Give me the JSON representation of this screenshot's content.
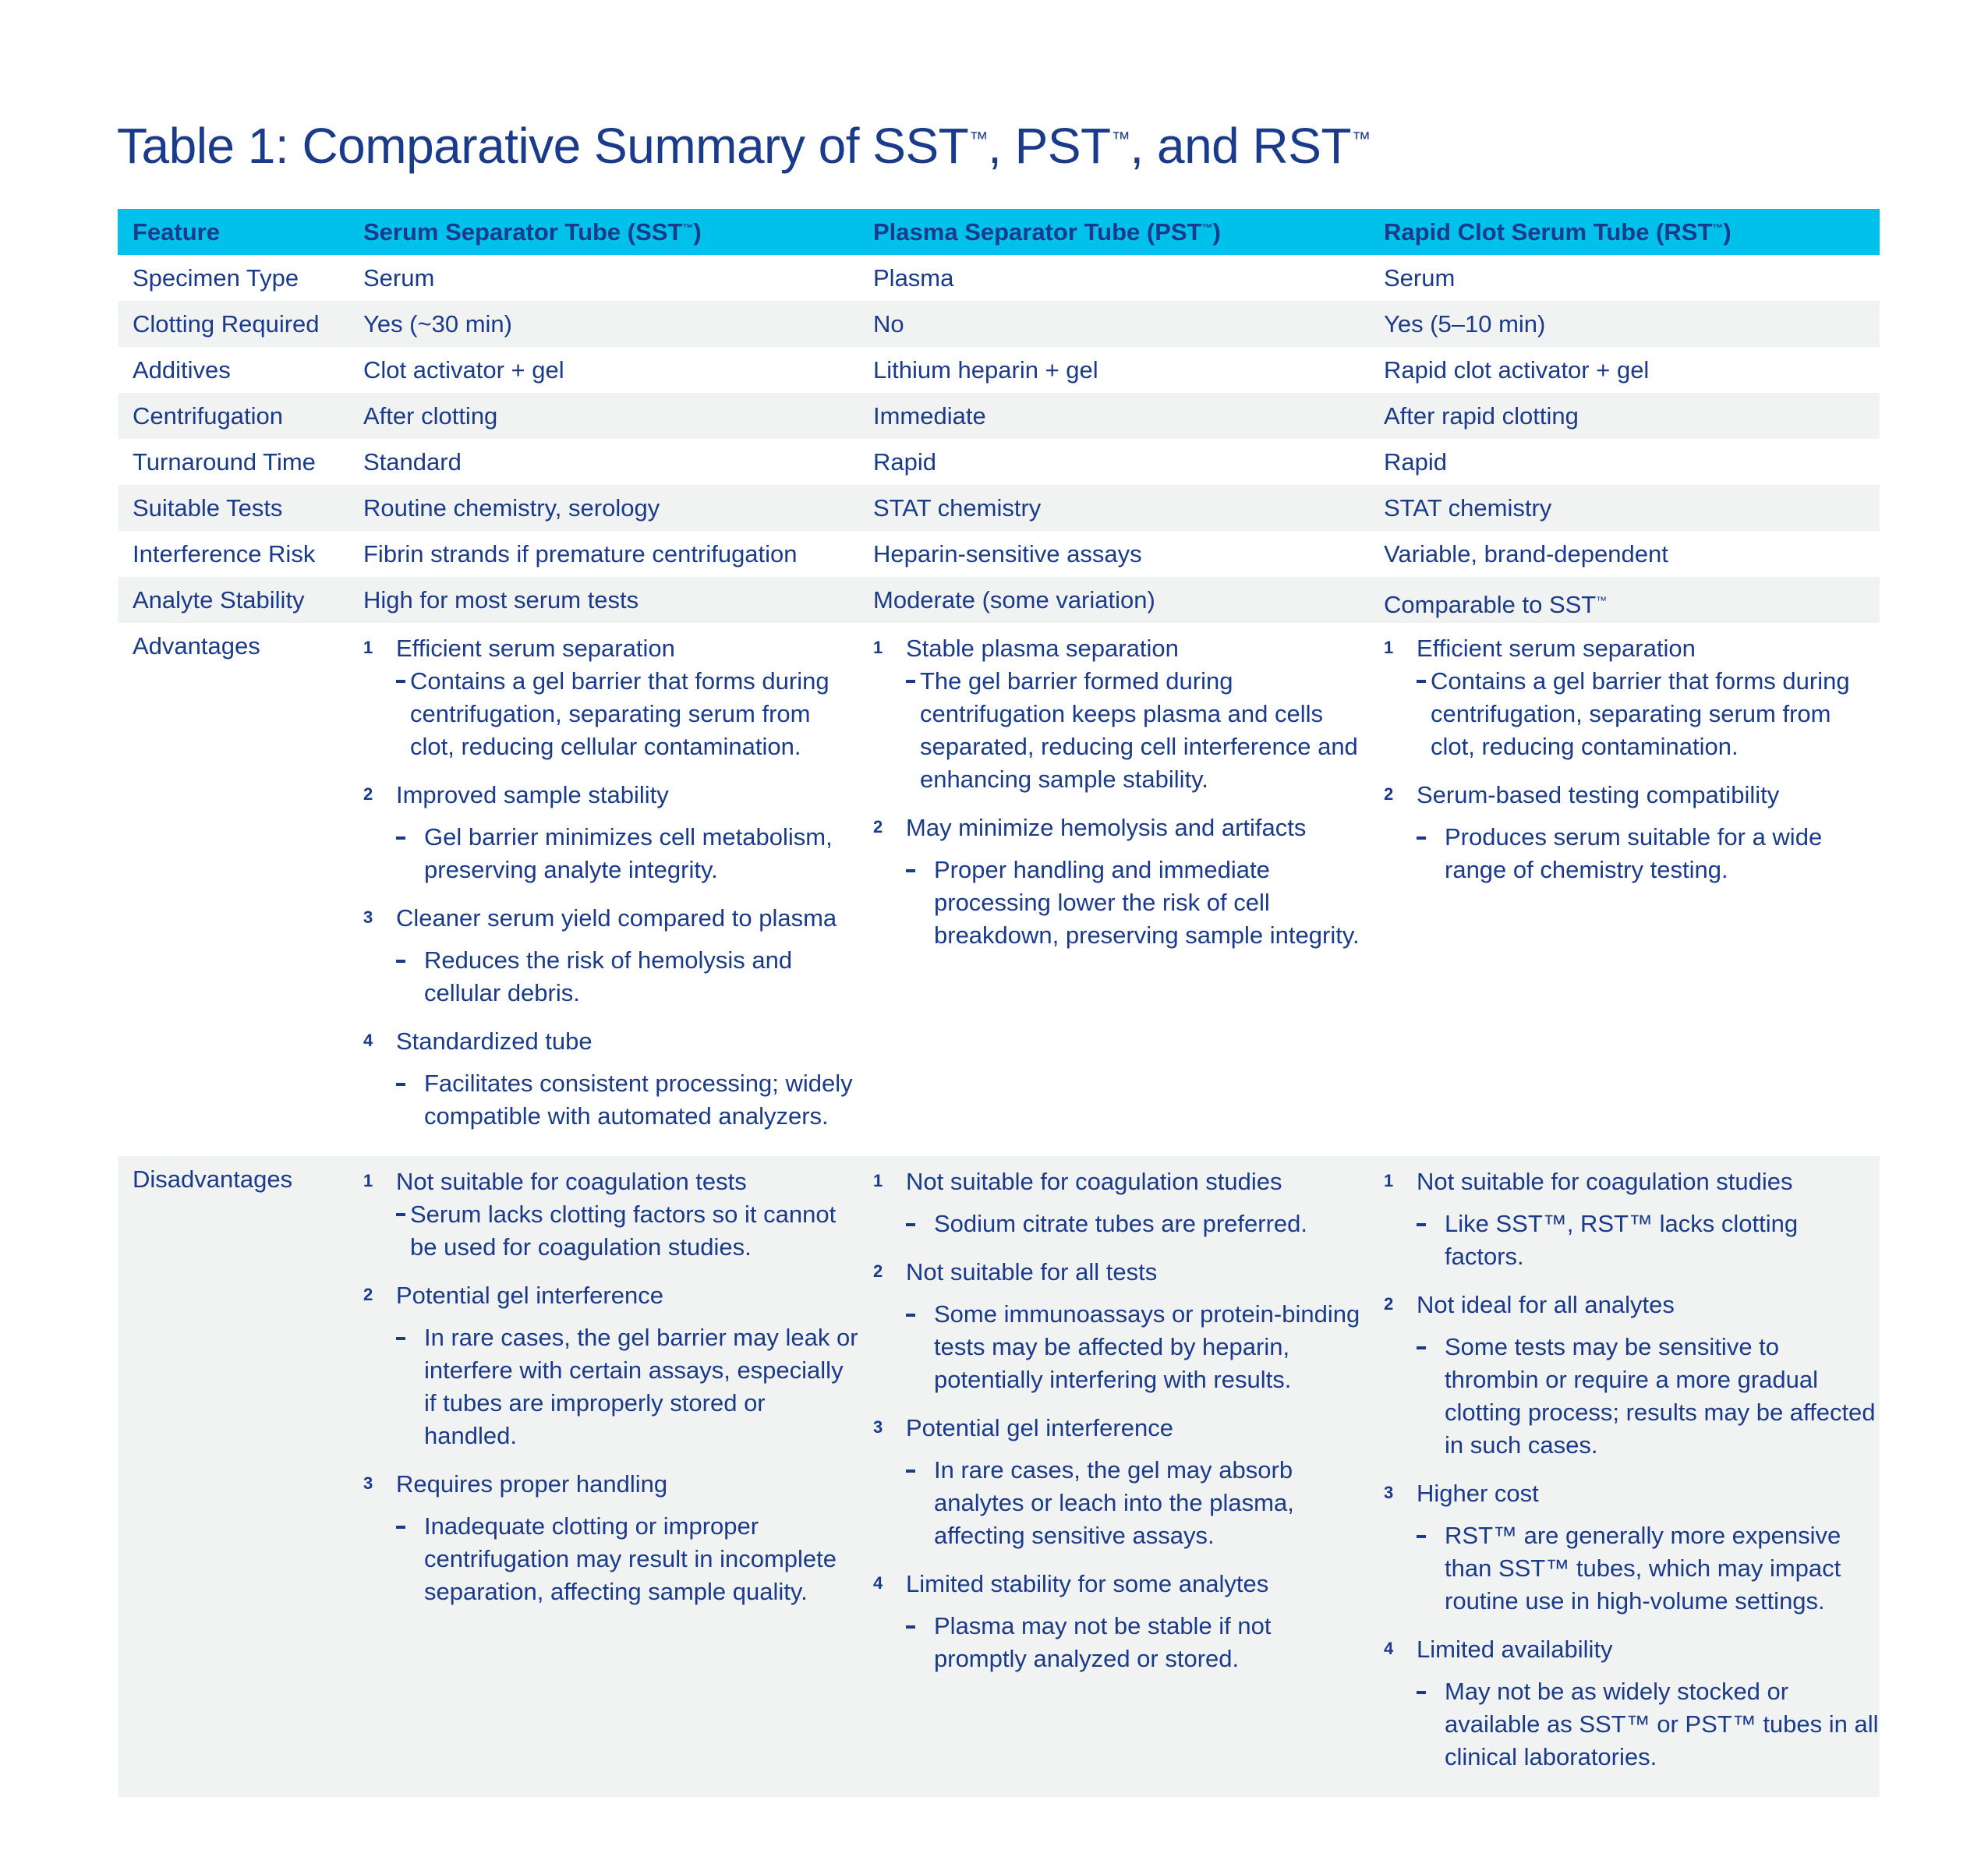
{
  "document": {
    "title": {
      "prefix": "Table 1: Comparative Summary of SST",
      "tm1": "™",
      "mid1": ", PST",
      "tm2": "™",
      "mid2": ", and RST",
      "tm3": "™"
    }
  },
  "table": {
    "colors": {
      "header_bg": "#00c1ec",
      "text": "#1a3a8a",
      "alt_row_bg": "#f1f2f2"
    },
    "headers": [
      {
        "text": "Feature"
      },
      {
        "text": "Serum Separator Tube (SST",
        "tm": "™",
        "suffix": ")"
      },
      {
        "text": "Plasma Separator Tube (PST",
        "tm": "™",
        "suffix": ")"
      },
      {
        "text": "Rapid Clot Serum Tube (RST",
        "tm": "™",
        "suffix": ")"
      }
    ],
    "rows": [
      {
        "feature": "Specimen Type",
        "sst": "Serum",
        "pst": "Plasma",
        "rst": "Serum"
      },
      {
        "feature": "Clotting Required",
        "sst": "Yes (~30 min)",
        "pst": "No",
        "rst": "Yes (5–10 min)"
      },
      {
        "feature": "Additives",
        "sst": "Clot activator + gel",
        "pst": "Lithium heparin + gel",
        "rst": "Rapid clot activator + gel"
      },
      {
        "feature": "Centrifugation",
        "sst": "After clotting",
        "pst": "Immediate",
        "rst": "After rapid clotting"
      },
      {
        "feature": "Turnaround Time",
        "sst": "Standard",
        "pst": "Rapid",
        "rst": "Rapid"
      },
      {
        "feature": "Suitable Tests",
        "sst": "Routine chemistry, serology",
        "pst": "STAT chemistry",
        "rst": "STAT chemistry"
      },
      {
        "feature": "Interference Risk",
        "sst": "Fibrin strands if premature centrifugation",
        "pst": "Heparin-sensitive assays",
        "rst": "Variable, brand-dependent"
      },
      {
        "feature": "Analyte Stability",
        "sst": "High for most serum tests",
        "pst": "Moderate (some variation)",
        "rst": "Comparable to SST",
        "rst_tm": "™"
      }
    ],
    "advantages": {
      "feature": "Advantages",
      "sst": [
        {
          "n": "1",
          "head": "Efficient serum separation",
          "sub": "Contains a gel barrier that forms during centrifugation, separating serum from clot, reducing cellular contamination."
        },
        {
          "n": "2",
          "head": "Improved sample stability",
          "sub": "Gel barrier minimizes cell metabolism, preserving analyte integrity."
        },
        {
          "n": "3",
          "head": "Cleaner serum yield compared to plasma",
          "sub": "Reduces the risk of hemolysis and cellular debris."
        },
        {
          "n": "4",
          "head": "Standardized tube",
          "sub": "Facilitates consistent processing; widely compatible with automated analyzers."
        }
      ],
      "pst": [
        {
          "n": "1",
          "head": "Stable plasma separation",
          "sub": "The gel barrier formed during centrifugation keeps plasma and cells separated, reducing cell interference and enhancing sample stability."
        },
        {
          "n": "2",
          "head": "May minimize hemolysis and artifacts",
          "sub": "Proper handling and immediate processing lower the risk of cell breakdown, preserving sample integrity."
        }
      ],
      "rst": [
        {
          "n": "1",
          "head": "Efficient serum separation",
          "sub": "Contains a gel barrier that forms during centrifugation, separating serum from clot, reducing contamination."
        },
        {
          "n": "2",
          "head": "Serum-based testing compatibility",
          "sub": "Produces serum suitable for a wide range of chemistry testing."
        }
      ]
    },
    "disadvantages": {
      "feature": "Disadvantages",
      "sst": [
        {
          "n": "1",
          "head": "Not suitable for coagulation tests",
          "sub": "Serum lacks clotting factors so it cannot be used for coagulation studies."
        },
        {
          "n": "2",
          "head": "Potential gel interference",
          "sub": "In rare cases, the gel barrier may leak or interfere with certain assays, especially if tubes are improperly stored or handled."
        },
        {
          "n": "3",
          "head": "Requires proper handling",
          "sub": "Inadequate clotting or improper centrifugation may result in incomplete separation, affecting sample quality."
        }
      ],
      "pst": [
        {
          "n": "1",
          "head": "Not suitable for coagulation studies",
          "sub": "Sodium citrate tubes are preferred."
        },
        {
          "n": "2",
          "head": "Not suitable for all tests",
          "sub": "Some immunoassays or protein-binding tests may be affected by heparin, potentially interfering with results."
        },
        {
          "n": "3",
          "head": "Potential gel interference",
          "sub": "In rare cases, the gel may absorb analytes or leach into the plasma, affecting sensitive assays."
        },
        {
          "n": "4",
          "head": "Limited stability for some analytes",
          "sub": "Plasma may not be stable if not promptly analyzed or stored."
        }
      ],
      "rst": [
        {
          "n": "1",
          "head": "Not suitable for coagulation studies",
          "sub": "Like SST™, RST™ lacks clotting factors."
        },
        {
          "n": "2",
          "head": "Not ideal for all analytes",
          "sub": "Some tests may be sensitive to thrombin or require a more gradual clotting process; results may be affected in such cases."
        },
        {
          "n": "3",
          "head": "Higher cost",
          "sub": "RST™ are generally more expensive than SST™ tubes, which may impact routine use in high-volume settings."
        },
        {
          "n": "4",
          "head": "Limited availability",
          "sub": "May not be as widely stocked or available as SST™ or PST™ tubes in all clinical laboratories."
        }
      ]
    }
  }
}
